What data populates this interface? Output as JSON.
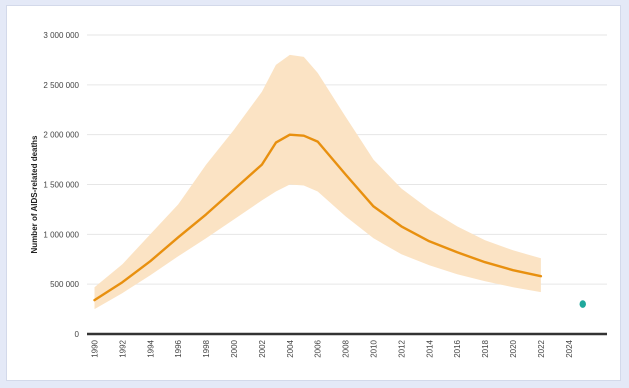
{
  "chart_data": {
    "type": "line",
    "title": "",
    "xlabel": "",
    "ylabel": "Number of AIDS-related deaths",
    "xlim": [
      1990,
      2025
    ],
    "ylim": [
      0,
      3000000
    ],
    "y_ticks": [
      0,
      500000,
      1000000,
      1500000,
      2000000,
      2500000,
      3000000
    ],
    "y_tick_labels": [
      "0",
      "500 000",
      "1 000 000",
      "1 500 000",
      "2 000 000",
      "2 500 000",
      "3 000 000"
    ],
    "x_ticks": [
      1990,
      1992,
      1994,
      1996,
      1998,
      2000,
      2002,
      2004,
      2006,
      2008,
      2010,
      2012,
      2014,
      2016,
      2018,
      2020,
      2022,
      2024
    ],
    "x_tick_labels": [
      "1990",
      "1992",
      "1994",
      "1996",
      "1998",
      "2000",
      "2002",
      "2004",
      "2006",
      "2008",
      "2010",
      "2012",
      "2014",
      "2016",
      "2018",
      "2020",
      "2022",
      "2024"
    ],
    "grid": true,
    "series": [
      {
        "x": [
          1990,
          1992,
          1994,
          1996,
          1998,
          2000,
          2002,
          2003,
          2004,
          2005,
          2006,
          2008,
          2010,
          2012,
          2014,
          2016,
          2018,
          2020,
          2022
        ],
        "values": [
          340000,
          520000,
          730000,
          970000,
          1200000,
          1450000,
          1700000,
          1920000,
          2000000,
          1990000,
          1930000,
          1600000,
          1280000,
          1080000,
          930000,
          820000,
          720000,
          640000,
          580000
        ],
        "lower": [
          250000,
          410000,
          590000,
          780000,
          960000,
          1150000,
          1340000,
          1430000,
          1500000,
          1490000,
          1430000,
          1180000,
          960000,
          800000,
          690000,
          600000,
          530000,
          470000,
          420000
        ],
        "upper": [
          470000,
          700000,
          1000000,
          1300000,
          1700000,
          2050000,
          2430000,
          2700000,
          2800000,
          2780000,
          2620000,
          2180000,
          1750000,
          1460000,
          1250000,
          1080000,
          940000,
          840000,
          760000
        ],
        "color": "#e8900f",
        "band_color": "#fbe3c4"
      }
    ],
    "target_point": {
      "x": 2025,
      "y": 300000,
      "color": "#1fa89c"
    }
  }
}
